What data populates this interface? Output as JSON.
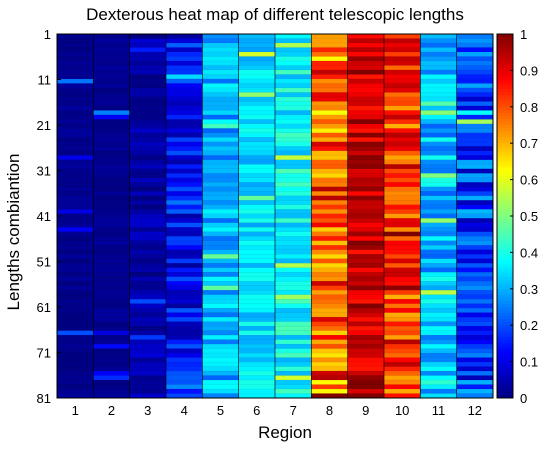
{
  "chart_data": {
    "type": "heatmap",
    "title": "Dexterous heat map of different telescopic lengths",
    "xlabel": "Region",
    "ylabel": "Lengths combiantion",
    "x_categories": [
      "1",
      "2",
      "3",
      "4",
      "5",
      "6",
      "7",
      "8",
      "9",
      "10",
      "11",
      "12"
    ],
    "y_tick_labels": [
      "1",
      "11",
      "21",
      "31",
      "41",
      "51",
      "61",
      "71",
      "81"
    ],
    "y_range": [
      1,
      81
    ],
    "colormap": "jet",
    "colorbar": {
      "min": 0,
      "max": 1,
      "tick_labels": [
        "0",
        "0.1",
        "0.2",
        "0.3",
        "0.4",
        "0.5",
        "0.6",
        "0.7",
        "0.8",
        "0.9",
        "1"
      ]
    },
    "column_value_ranges": [
      {
        "region": "1",
        "typical": [
          0.0,
          0.03
        ]
      },
      {
        "region": "2",
        "typical": [
          0.0,
          0.03
        ]
      },
      {
        "region": "3",
        "typical": [
          0.0,
          0.08
        ]
      },
      {
        "region": "4",
        "typical": [
          0.03,
          0.22
        ]
      },
      {
        "region": "5",
        "typical": [
          0.22,
          0.38
        ]
      },
      {
        "region": "6",
        "typical": [
          0.28,
          0.4
        ]
      },
      {
        "region": "7",
        "typical": [
          0.3,
          0.45
        ]
      },
      {
        "region": "8",
        "typical": [
          0.62,
          0.95
        ]
      },
      {
        "region": "9",
        "typical": [
          0.85,
          1.0
        ]
      },
      {
        "region": "10",
        "typical": [
          0.7,
          0.95
        ]
      },
      {
        "region": "11",
        "typical": [
          0.22,
          0.4
        ]
      },
      {
        "region": "12",
        "typical": [
          0.05,
          0.3
        ]
      }
    ]
  }
}
